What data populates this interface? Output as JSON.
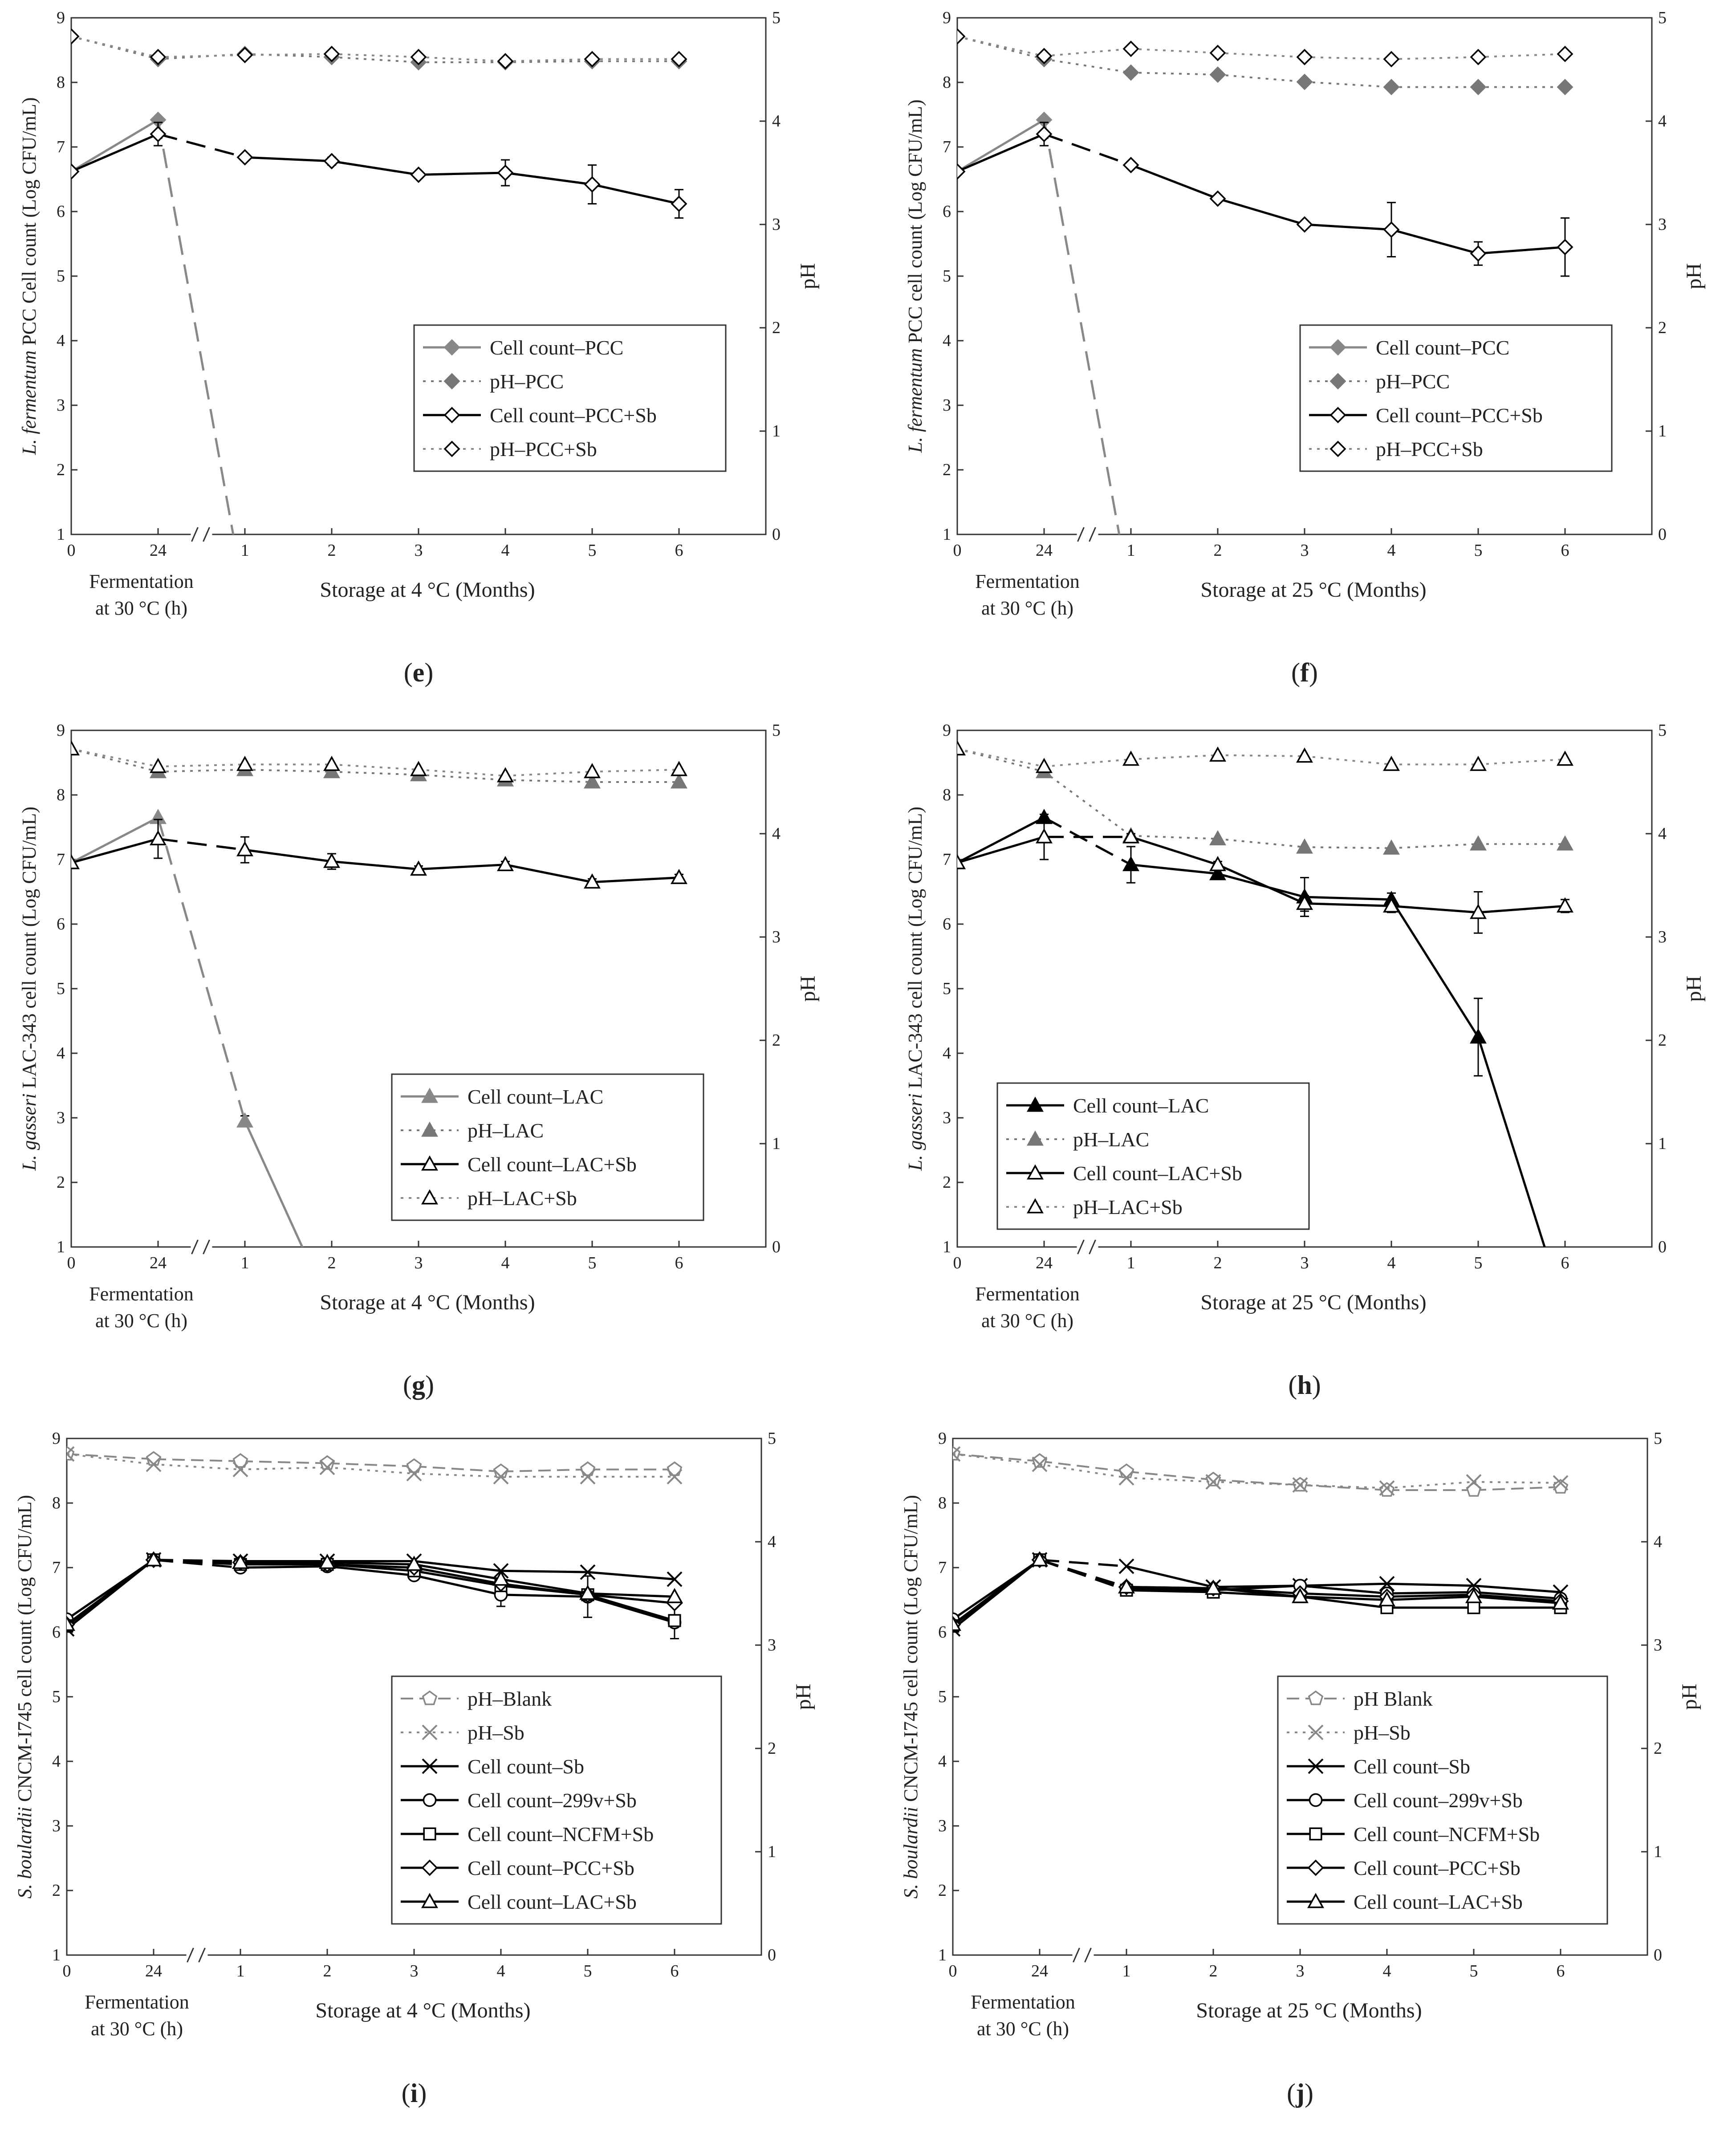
{
  "figure": {
    "panel_labels": [
      "(e)",
      "(f)",
      "(g)",
      "(h)",
      "(i)",
      "(j)"
    ]
  },
  "chart_data": [
    {
      "panel": "e",
      "type": "line",
      "x": [
        "0",
        "24",
        "1",
        "2",
        "3",
        "4",
        "5",
        "6"
      ],
      "xlabel_fermentation": [
        "Fermentation",
        "at 30 °C (h)"
      ],
      "xlabel_storage": "Storage at 4 °C (Months)",
      "ylabel_left_italic": "L. fermentum",
      "ylabel_left_rest": " PCC Cell count (Log CFU/mL)",
      "ylabel_right": "pH",
      "ylim_left": [
        1,
        9
      ],
      "yticks_left": [
        "1",
        "2",
        "3",
        "4",
        "5",
        "6",
        "7",
        "8",
        "9"
      ],
      "ylim_right": [
        0,
        5
      ],
      "yticks_right": [
        "0",
        "1",
        "2",
        "3",
        "4",
        "5"
      ],
      "legend_position": "center-right",
      "series": [
        {
          "name": "Cell count–PCC",
          "axis": "left",
          "marker": "diamond",
          "filled": true,
          "line": "solid",
          "color": "#888888",
          "values": [
            6.62,
            7.42,
            0.0,
            null,
            null,
            null,
            null,
            null
          ]
        },
        {
          "name": "pH–PCC",
          "axis": "right",
          "marker": "diamond",
          "filled": true,
          "line": "dotted",
          "color": "#777777",
          "values": [
            4.82,
            4.6,
            4.65,
            4.62,
            4.57,
            4.57,
            4.58,
            4.58
          ]
        },
        {
          "name": "Cell count–PCC+Sb",
          "axis": "left",
          "marker": "diamond",
          "filled": false,
          "line": "solid",
          "color": "#000000",
          "values": [
            6.62,
            7.2,
            6.84,
            6.78,
            6.57,
            6.6,
            6.42,
            6.12
          ],
          "errors": [
            0,
            0.18,
            0.05,
            0.06,
            0.05,
            0.2,
            0.3,
            0.22
          ]
        },
        {
          "name": "pH–PCC+Sb",
          "axis": "right",
          "marker": "diamond",
          "filled": false,
          "line": "dotted",
          "color": "#888888",
          "values": [
            4.82,
            4.62,
            4.64,
            4.65,
            4.62,
            4.58,
            4.6,
            4.6
          ]
        }
      ]
    },
    {
      "panel": "f",
      "type": "line",
      "x": [
        "0",
        "24",
        "1",
        "2",
        "3",
        "4",
        "5",
        "6"
      ],
      "xlabel_fermentation": [
        "Fermentation",
        "at 30 °C (h)"
      ],
      "xlabel_storage": "Storage at 25 °C (Months)",
      "ylabel_left_italic": "L. fermentum",
      "ylabel_left_rest": " PCC cell count (Log CFU/mL)",
      "ylabel_right": "pH",
      "ylim_left": [
        1,
        9
      ],
      "yticks_left": [
        "1",
        "2",
        "3",
        "4",
        "5",
        "6",
        "7",
        "8",
        "9"
      ],
      "ylim_right": [
        0,
        5
      ],
      "yticks_right": [
        "0",
        "1",
        "2",
        "3",
        "4",
        "5"
      ],
      "legend_position": "center-right",
      "series": [
        {
          "name": "Cell count–PCC",
          "axis": "left",
          "marker": "diamond",
          "filled": true,
          "line": "solid",
          "color": "#888888",
          "values": [
            6.62,
            7.42,
            0.0,
            null,
            null,
            null,
            null,
            null
          ]
        },
        {
          "name": "pH–PCC",
          "axis": "right",
          "marker": "diamond",
          "filled": true,
          "line": "dotted",
          "color": "#777777",
          "values": [
            4.82,
            4.6,
            4.47,
            4.45,
            4.38,
            4.33,
            4.33,
            4.33
          ]
        },
        {
          "name": "Cell count–PCC+Sb",
          "axis": "left",
          "marker": "diamond",
          "filled": false,
          "line": "solid",
          "color": "#000000",
          "values": [
            6.62,
            7.2,
            6.72,
            6.2,
            5.8,
            5.72,
            5.35,
            5.45
          ],
          "errors": [
            0,
            0.18,
            0.05,
            0.05,
            0.05,
            0.42,
            0.18,
            0.45
          ]
        },
        {
          "name": "pH–PCC+Sb",
          "axis": "right",
          "marker": "diamond",
          "filled": false,
          "line": "dotted",
          "color": "#888888",
          "values": [
            4.82,
            4.63,
            4.7,
            4.66,
            4.62,
            4.6,
            4.62,
            4.65
          ]
        }
      ]
    },
    {
      "panel": "g",
      "type": "line",
      "x": [
        "0",
        "24",
        "1",
        "2",
        "3",
        "4",
        "5",
        "6"
      ],
      "xlabel_fermentation": [
        "Fermentation",
        "at 30 °C (h)"
      ],
      "xlabel_storage": "Storage at 4 °C (Months)",
      "ylabel_left_italic": "L. gasseri",
      "ylabel_left_rest": " LAC-343 cell count (Log CFU/mL)",
      "ylabel_right": "pH",
      "ylim_left": [
        1,
        9
      ],
      "yticks_left": [
        "1",
        "2",
        "3",
        "4",
        "5",
        "6",
        "7",
        "8",
        "9"
      ],
      "ylim_right": [
        0,
        5
      ],
      "yticks_right": [
        "0",
        "1",
        "2",
        "3",
        "4",
        "5"
      ],
      "legend_position": "bottom-right",
      "series": [
        {
          "name": "Cell count–LAC",
          "axis": "left",
          "marker": "triangle",
          "filled": true,
          "line": "solid",
          "color": "#888888",
          "values": [
            6.95,
            7.65,
            2.95,
            0.0,
            null,
            null,
            null,
            null
          ],
          "errors": [
            0,
            0,
            0.08,
            0,
            0,
            0,
            0,
            0
          ]
        },
        {
          "name": "pH–LAC",
          "axis": "right",
          "marker": "triangle",
          "filled": true,
          "line": "dotted",
          "color": "#777777",
          "values": [
            4.82,
            4.6,
            4.62,
            4.6,
            4.57,
            4.52,
            4.5,
            4.5
          ]
        },
        {
          "name": "Cell count–LAC+Sb",
          "axis": "left",
          "marker": "triangle",
          "filled": false,
          "line": "solid",
          "color": "#000000",
          "values": [
            6.95,
            7.32,
            7.15,
            6.97,
            6.85,
            6.92,
            6.65,
            6.72
          ],
          "errors": [
            0,
            0.3,
            0.2,
            0.12,
            0.05,
            0.05,
            0.05,
            0.05
          ]
        },
        {
          "name": "pH–LAC+Sb",
          "axis": "right",
          "marker": "triangle",
          "filled": false,
          "line": "dotted",
          "color": "#888888",
          "values": [
            4.82,
            4.65,
            4.67,
            4.67,
            4.62,
            4.56,
            4.6,
            4.62
          ]
        }
      ]
    },
    {
      "panel": "h",
      "type": "line",
      "x": [
        "0",
        "24",
        "1",
        "2",
        "3",
        "4",
        "5",
        "6"
      ],
      "xlabel_fermentation": [
        "Fermentation",
        "at 30 °C (h)"
      ],
      "xlabel_storage": "Storage at 25 °C (Months)",
      "ylabel_left_italic": "L. gasseri",
      "ylabel_left_rest": " LAC-343 cell count (Log CFU/mL)",
      "ylabel_right": "pH",
      "ylim_left": [
        1,
        9
      ],
      "yticks_left": [
        "1",
        "2",
        "3",
        "4",
        "5",
        "6",
        "7",
        "8",
        "9"
      ],
      "ylim_right": [
        0,
        5
      ],
      "yticks_right": [
        "0",
        "1",
        "2",
        "3",
        "4",
        "5"
      ],
      "legend_position": "bottom-left",
      "series": [
        {
          "name": "Cell count–LAC",
          "axis": "left",
          "marker": "triangle",
          "filled": true,
          "line": "solid",
          "color": "#000000",
          "values": [
            6.95,
            7.65,
            6.92,
            6.78,
            6.42,
            6.38,
            4.25,
            0.0
          ],
          "errors": [
            0,
            0,
            0.28,
            0.05,
            0.3,
            0.1,
            0.6,
            0
          ]
        },
        {
          "name": "pH–LAC",
          "axis": "right",
          "marker": "triangle",
          "filled": true,
          "line": "dotted",
          "color": "#777777",
          "values": [
            4.82,
            4.6,
            3.98,
            3.95,
            3.87,
            3.86,
            3.9,
            3.9
          ]
        },
        {
          "name": "Cell count–LAC+Sb",
          "axis": "left",
          "marker": "triangle",
          "filled": false,
          "line": "solid",
          "color": "#000000",
          "values": [
            6.95,
            7.35,
            7.35,
            6.92,
            6.32,
            6.28,
            6.18,
            6.28
          ],
          "errors": [
            0,
            0.35,
            0.05,
            0.05,
            0.12,
            0.1,
            0.32,
            0.1
          ]
        },
        {
          "name": "pH–LAC+Sb",
          "axis": "right",
          "marker": "triangle",
          "filled": false,
          "line": "dotted",
          "color": "#888888",
          "values": [
            4.82,
            4.65,
            4.72,
            4.76,
            4.75,
            4.67,
            4.67,
            4.72
          ]
        }
      ]
    },
    {
      "panel": "i",
      "type": "line",
      "x": [
        "0",
        "24",
        "1",
        "2",
        "3",
        "4",
        "5",
        "6"
      ],
      "xlabel_fermentation": [
        "Fermentation",
        "at 30 °C (h)"
      ],
      "xlabel_storage": "Storage at 4 °C (Months)",
      "ylabel_left_italic": "S. boulardii",
      "ylabel_left_rest": " CNCM-I745 cell count (Log CFU/mL)",
      "ylabel_right": "pH",
      "ylim_left": [
        1,
        9
      ],
      "yticks_left": [
        "1",
        "2",
        "3",
        "4",
        "5",
        "6",
        "7",
        "8",
        "9"
      ],
      "ylim_right": [
        0,
        5
      ],
      "yticks_right": [
        "0",
        "1",
        "2",
        "3",
        "4",
        "5"
      ],
      "legend_position": "bottom-right",
      "series": [
        {
          "name": "pH–Blank",
          "axis": "right",
          "marker": "pentagon",
          "filled": false,
          "line": "dashed",
          "color": "#888888",
          "values": [
            4.85,
            4.8,
            4.78,
            4.76,
            4.73,
            4.68,
            4.7,
            4.7
          ]
        },
        {
          "name": "pH–Sb",
          "axis": "right",
          "marker": "x",
          "filled": false,
          "line": "dotted",
          "color": "#888888",
          "values": [
            4.85,
            4.75,
            4.7,
            4.72,
            4.66,
            4.63,
            4.63,
            4.63
          ]
        },
        {
          "name": "Cell count–Sb",
          "axis": "left",
          "marker": "x",
          "filled": false,
          "line": "solid",
          "color": "#000000",
          "values": [
            6.05,
            7.12,
            7.1,
            7.1,
            7.1,
            6.95,
            6.93,
            6.82
          ]
        },
        {
          "name": "Cell count–299v+Sb",
          "axis": "left",
          "marker": "circle",
          "filled": false,
          "line": "solid",
          "color": "#000000",
          "values": [
            6.2,
            7.12,
            7.0,
            7.02,
            6.88,
            6.58,
            6.55,
            6.15
          ],
          "errors": [
            0,
            0,
            0.05,
            0.05,
            0.05,
            0.18,
            0.32,
            0.25
          ]
        },
        {
          "name": "Cell count–NCFM+Sb",
          "axis": "left",
          "marker": "square",
          "filled": false,
          "line": "solid",
          "color": "#000000",
          "values": [
            6.1,
            7.12,
            7.05,
            7.05,
            6.95,
            6.72,
            6.58,
            6.18
          ]
        },
        {
          "name": "Cell count–PCC+Sb",
          "axis": "left",
          "marker": "diamond",
          "filled": false,
          "line": "solid",
          "color": "#000000",
          "values": [
            6.12,
            7.12,
            7.08,
            7.05,
            7.0,
            6.75,
            6.58,
            6.45
          ]
        },
        {
          "name": "Cell count–LAC+Sb",
          "axis": "left",
          "marker": "triangle",
          "filled": false,
          "line": "solid",
          "color": "#000000",
          "values": [
            6.12,
            7.12,
            7.08,
            7.08,
            7.05,
            6.82,
            6.6,
            6.55
          ]
        }
      ]
    },
    {
      "panel": "j",
      "type": "line",
      "x": [
        "0",
        "24",
        "1",
        "2",
        "3",
        "4",
        "5",
        "6"
      ],
      "xlabel_fermentation": [
        "Fermentation",
        "at 30 °C (h)"
      ],
      "xlabel_storage": "Storage at 25 °C (Months)",
      "ylabel_left_italic": "S. boulardii",
      "ylabel_left_rest": " CNCM-I745 cell count (Log CFU/mL)",
      "ylabel_right": "pH",
      "ylim_left": [
        1,
        9
      ],
      "yticks_left": [
        "1",
        "2",
        "3",
        "4",
        "5",
        "6",
        "7",
        "8",
        "9"
      ],
      "ylim_right": [
        0,
        5
      ],
      "yticks_right": [
        "0",
        "1",
        "2",
        "3",
        "4",
        "5"
      ],
      "legend_position": "bottom-right",
      "series": [
        {
          "name": "pH Blank",
          "axis": "right",
          "marker": "pentagon",
          "filled": false,
          "line": "dashed",
          "color": "#888888",
          "values": [
            4.85,
            4.78,
            4.68,
            4.6,
            4.55,
            4.5,
            4.5,
            4.53
          ]
        },
        {
          "name": "pH–Sb",
          "axis": "right",
          "marker": "x",
          "filled": false,
          "line": "dotted",
          "color": "#888888",
          "values": [
            4.85,
            4.75,
            4.62,
            4.58,
            4.55,
            4.52,
            4.58,
            4.57
          ]
        },
        {
          "name": "Cell count–Sb",
          "axis": "left",
          "marker": "x",
          "filled": false,
          "line": "solid",
          "color": "#000000",
          "values": [
            6.05,
            7.12,
            7.02,
            6.7,
            6.72,
            6.75,
            6.72,
            6.62
          ]
        },
        {
          "name": "Cell count–299v+Sb",
          "axis": "left",
          "marker": "circle",
          "filled": false,
          "line": "solid",
          "color": "#000000",
          "values": [
            6.2,
            7.12,
            6.68,
            6.65,
            6.72,
            6.6,
            6.62,
            6.52
          ]
        },
        {
          "name": "Cell count–NCFM+Sb",
          "axis": "left",
          "marker": "square",
          "filled": false,
          "line": "solid",
          "color": "#000000",
          "values": [
            6.1,
            7.12,
            6.65,
            6.62,
            6.55,
            6.38,
            6.38,
            6.38
          ]
        },
        {
          "name": "Cell count–PCC+Sb",
          "axis": "left",
          "marker": "diamond",
          "filled": false,
          "line": "solid",
          "color": "#000000",
          "values": [
            6.12,
            7.12,
            6.7,
            6.68,
            6.6,
            6.55,
            6.58,
            6.48
          ]
        },
        {
          "name": "Cell count–LAC+Sb",
          "axis": "left",
          "marker": "triangle",
          "filled": false,
          "line": "solid",
          "color": "#000000",
          "values": [
            6.12,
            7.12,
            6.7,
            6.68,
            6.55,
            6.5,
            6.55,
            6.45
          ]
        }
      ]
    }
  ]
}
